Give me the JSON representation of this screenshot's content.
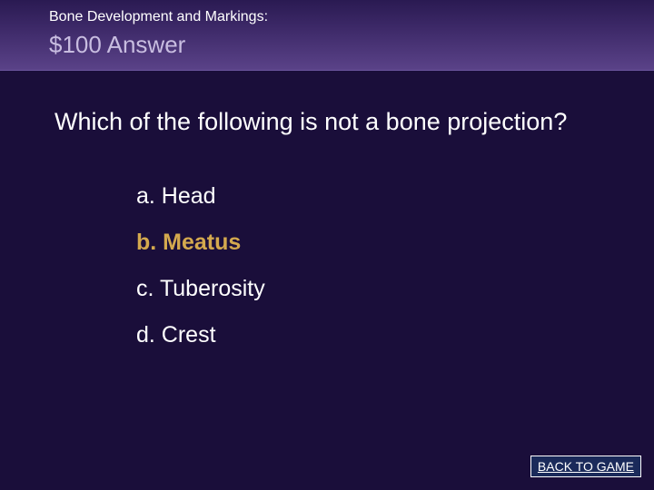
{
  "header": {
    "category": "Bone Development and Markings:",
    "amount": "$100 Answer"
  },
  "question": "Which of the following is not a bone projection?",
  "options": [
    {
      "label": "a. Head",
      "correct": false
    },
    {
      "label": "b. Meatus",
      "correct": true
    },
    {
      "label": "c. Tuberosity",
      "correct": false
    },
    {
      "label": "d. Crest",
      "correct": false
    }
  ],
  "back_button": "BACK TO GAME",
  "colors": {
    "background": "#1a0e3a",
    "header_gradient_top": "#2a1a52",
    "header_gradient_mid": "#3d2968",
    "header_gradient_bot": "#5a4288",
    "text": "#ffffff",
    "amount_text": "#c8bde0",
    "correct_answer": "#d4a94e",
    "button_bg": "#1a2a5a",
    "button_border": "#ffffff"
  },
  "typography": {
    "category_fontsize": 16,
    "amount_fontsize": 26,
    "question_fontsize": 27,
    "option_fontsize": 25,
    "button_fontsize": 14
  }
}
